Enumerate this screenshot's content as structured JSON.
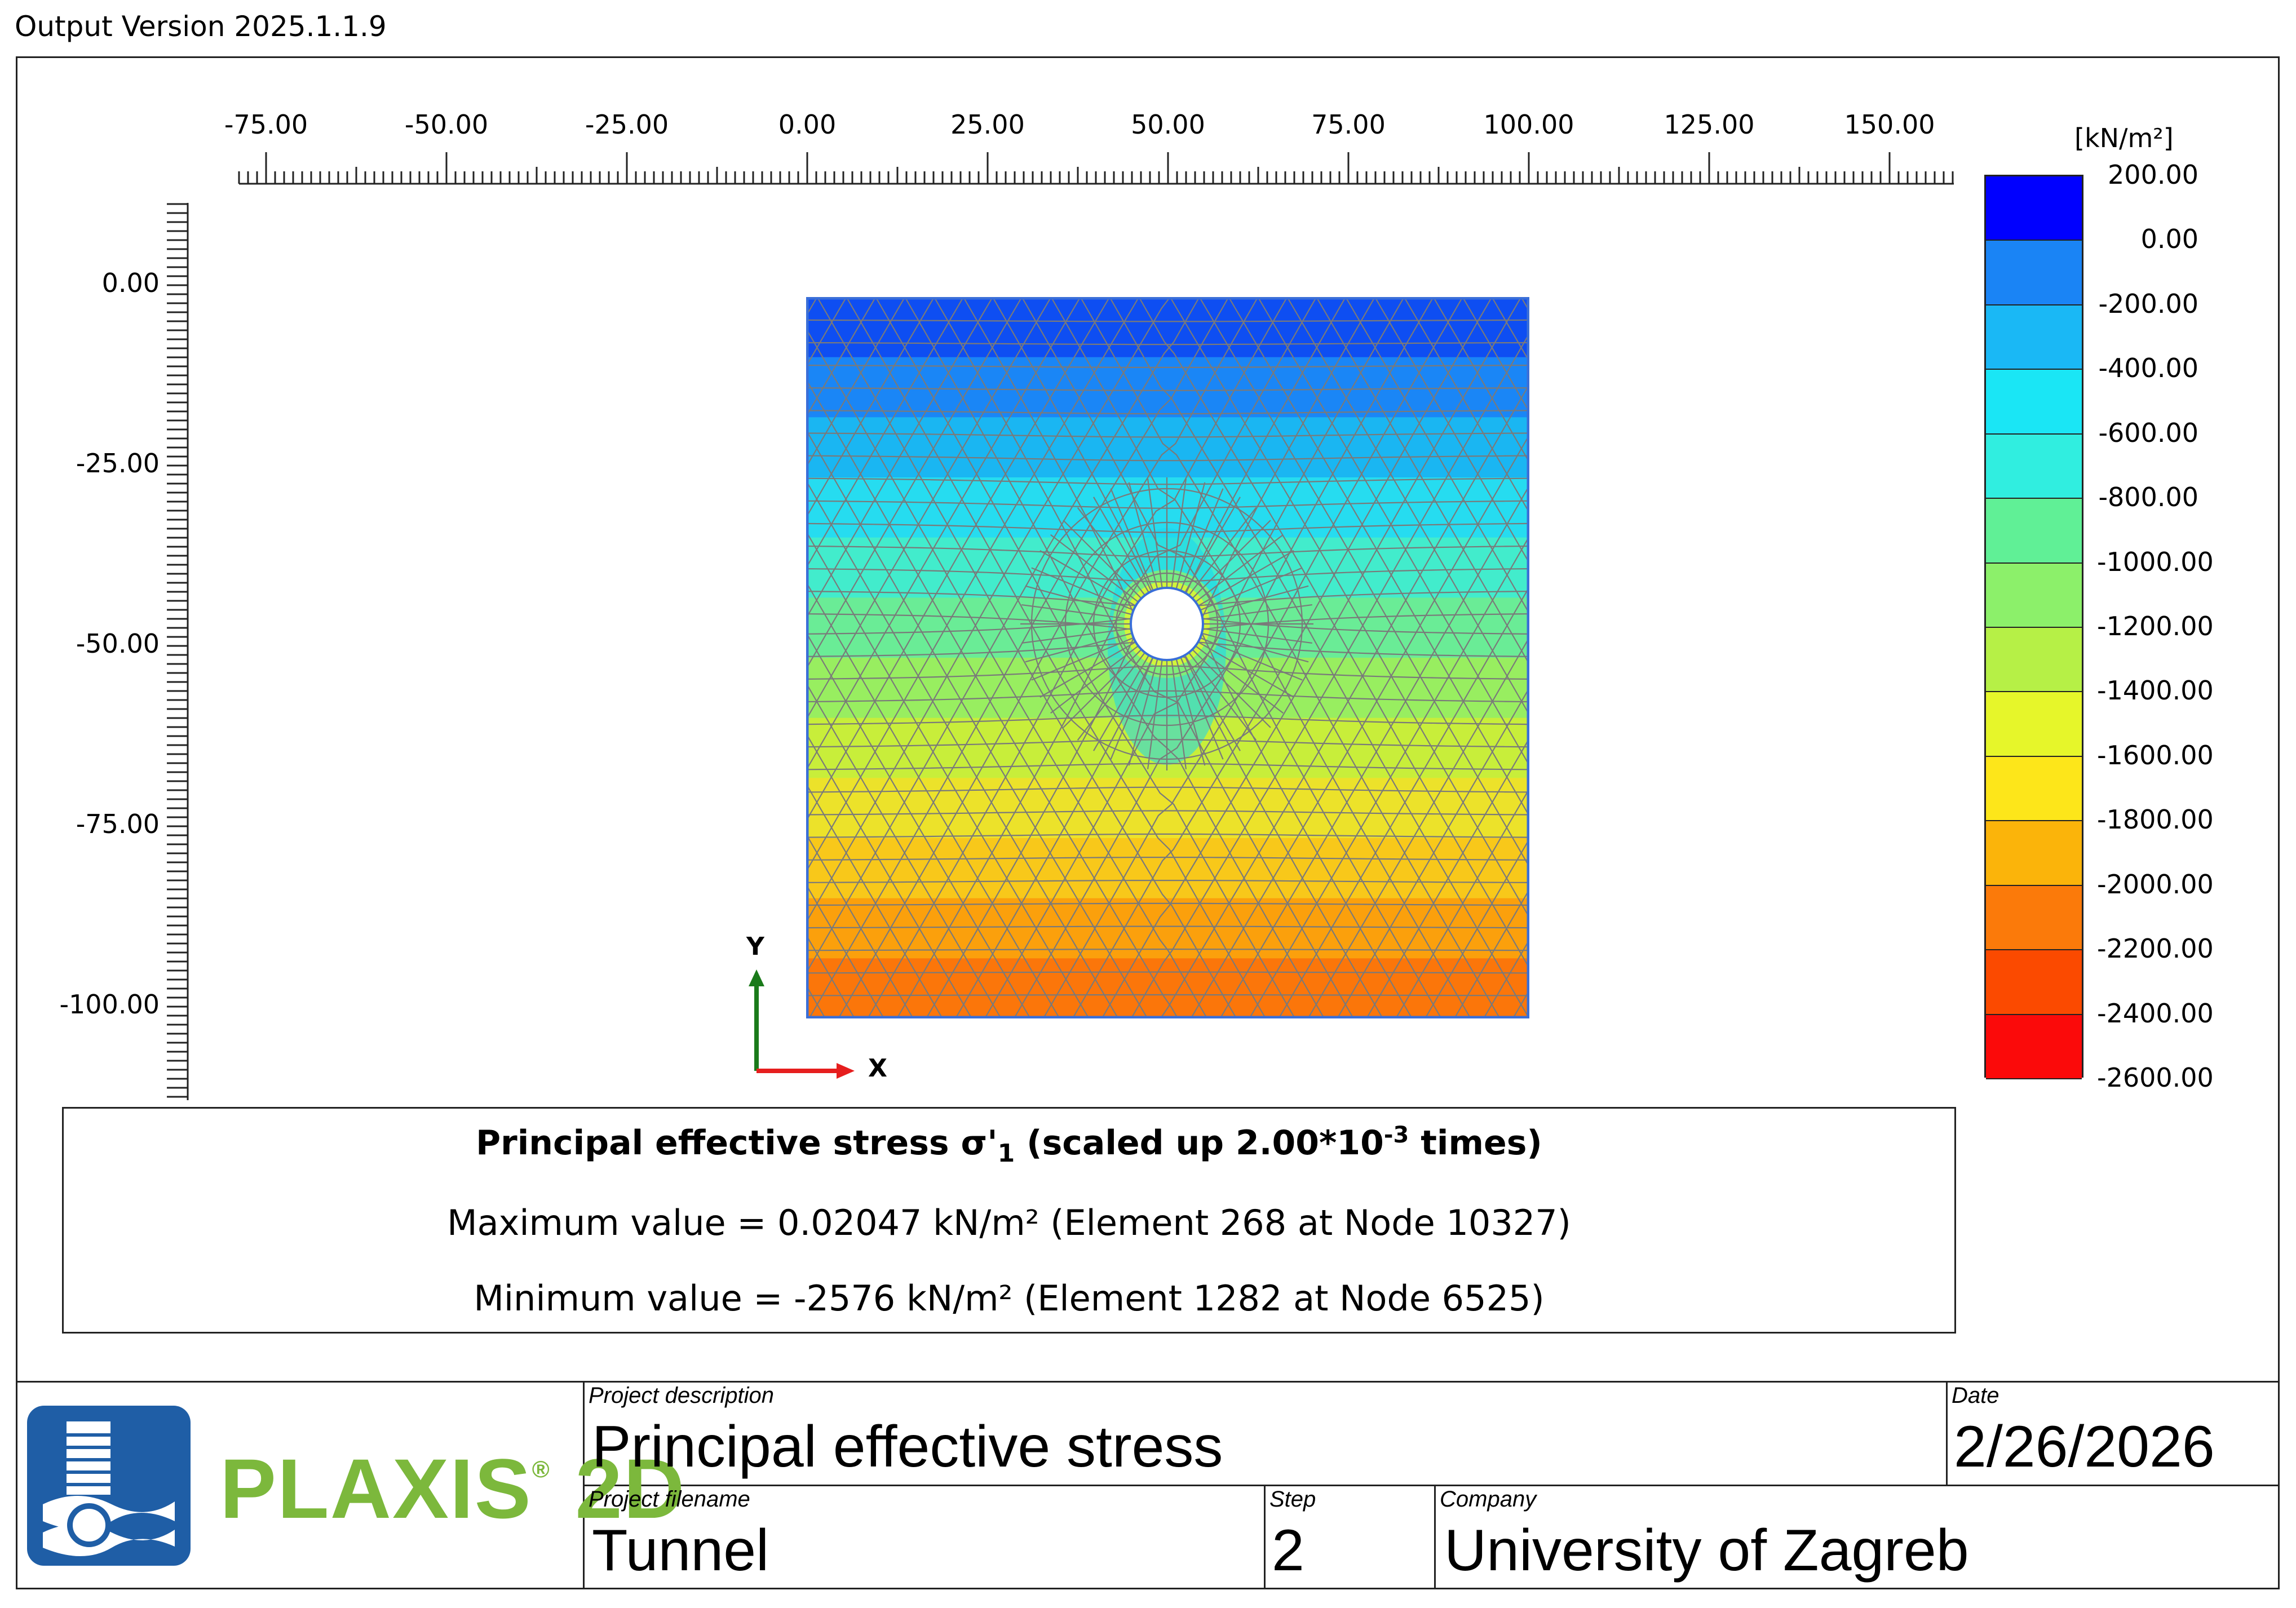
{
  "version": "Output Version 2025.1.1.9",
  "x_axis_ticks": [
    "-75.00",
    "-50.00",
    "-25.00",
    "0.00",
    "25.00",
    "50.00",
    "75.00",
    "100.00",
    "125.00",
    "150.00"
  ],
  "y_axis_ticks": [
    "0.00",
    "-25.00",
    "-50.00",
    "-75.00",
    "-100.00"
  ],
  "legend": {
    "unit": "[kN/m²]",
    "labels": [
      "200.00",
      "0.00",
      "-200.00",
      "-400.00",
      "-600.00",
      "-800.00",
      "-1000.00",
      "-1200.00",
      "-1400.00",
      "-1600.00",
      "-1800.00",
      "-2000.00",
      "-2200.00",
      "-2400.00",
      "-2600.00"
    ],
    "colors": [
      "#0000ff",
      "#0a46f0",
      "#1a84f5",
      "#1ab8f5",
      "#1ae6f5",
      "#30eee0",
      "#60f096",
      "#8cf06a",
      "#b6f046",
      "#e6f62a",
      "#fde61a",
      "#fbb40a",
      "#fb7a0a",
      "#fb4a00",
      "#fb0a0a"
    ]
  },
  "model": {
    "band_colors": [
      "#0e4ef2",
      "#1a86f6",
      "#1ab6f2",
      "#26dcf0",
      "#42eccc",
      "#6aec96",
      "#98ee60",
      "#c8ee3a",
      "#ece22a",
      "#f8c81a",
      "#fba00c",
      "#fb760a"
    ]
  },
  "axes": {
    "x_label": "X",
    "y_label": "Y"
  },
  "result": {
    "title_main": "Principal effective stress σ'",
    "title_sub": "1",
    "title_scale": " (scaled up 2.00*10",
    "title_exp": "-3",
    "title_end": " times)",
    "max_text": "Maximum value = 0.02047 kN/m² (Element 268 at Node 10327)",
    "min_text": "Minimum value = -2576 kN/m² (Element 1282 at Node 6525)"
  },
  "footer": {
    "brand": "PLAXIS",
    "brand_reg": "®",
    "brand_suffix": " 2D",
    "project_description_caption": "Project description",
    "project_description": "Principal effective stress",
    "date_caption": "Date",
    "date": "2/26/2026",
    "project_filename_caption": "Project filename",
    "project_filename": "Tunnel",
    "step_caption": "Step",
    "step": "2",
    "company_caption": "Company",
    "company": "University of Zagreb"
  }
}
